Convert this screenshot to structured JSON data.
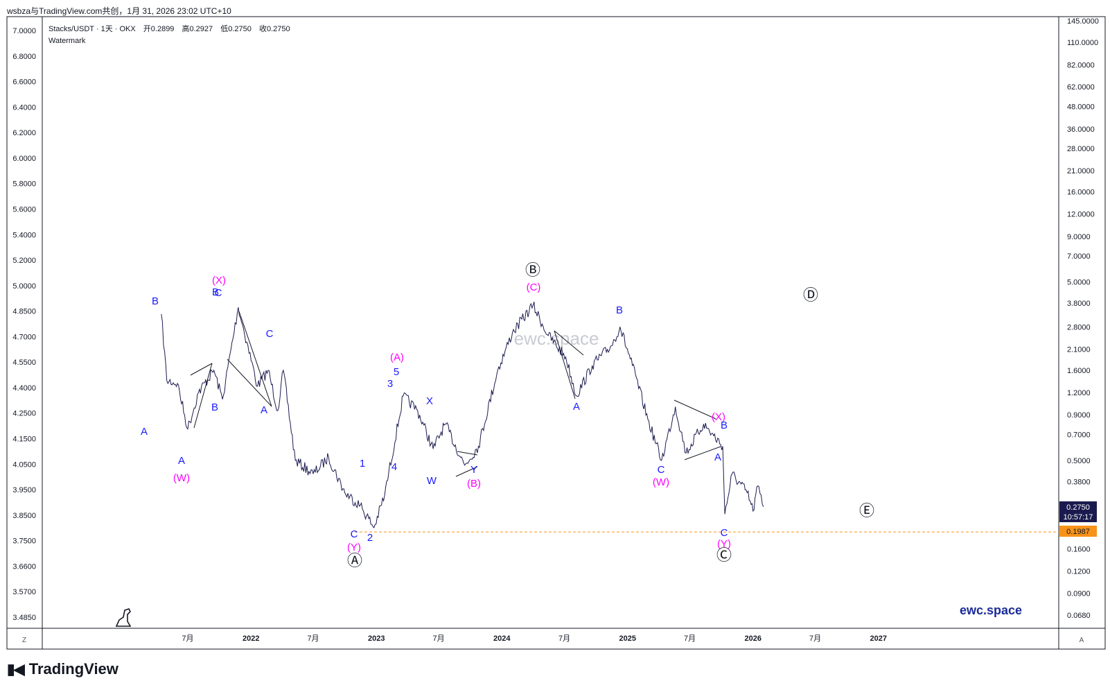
{
  "header": {
    "caption": "wsbza与TradingView.com共创，1月 31, 2026 23:02 UTC+10"
  },
  "legend": {
    "symbol": "Stacks/USDT · 1天 · OKX",
    "open_label": "开",
    "open": "0.2899",
    "high_label": "高",
    "high": "0.2927",
    "low_label": "低",
    "low": "0.2750",
    "close_label": "收",
    "close": "0.2750",
    "watermark_line": "Watermark"
  },
  "watermark": {
    "center_text": "ewc.space",
    "brand_text": "ewc.space"
  },
  "price_badges": {
    "last_price": "0.2750",
    "countdown": "10:57:17",
    "support": "0.1987"
  },
  "axis_buttons": {
    "left": "Z",
    "right": "A"
  },
  "footer": {
    "brand": "TradingView"
  },
  "colors": {
    "candle": "#1a1a4e",
    "blue_label": "#1a1aff",
    "magenta_label": "#ff00ff",
    "support_line": "#f7931a",
    "last_badge": "#1a1a4e",
    "support_badge": "#f7931a"
  },
  "chart_data": {
    "type": "line",
    "title": "Stacks/USDT · 1天 · OKX",
    "x_ticks": [
      "7月",
      "2022",
      "7月",
      "2023",
      "7月",
      "2024",
      "7月",
      "2025",
      "7月",
      "2026",
      "7月",
      "2027"
    ],
    "left_axis_ticks": [
      "7.0000",
      "6.8000",
      "6.6000",
      "6.4000",
      "6.2000",
      "6.0000",
      "5.8000",
      "5.6000",
      "5.4000",
      "5.2000",
      "5.0000",
      "4.8500",
      "4.7000",
      "4.5500",
      "4.4000",
      "4.2500",
      "4.1500",
      "4.0500",
      "3.9500",
      "3.8500",
      "3.7500",
      "3.6600",
      "3.5700",
      "3.4850"
    ],
    "right_axis_ticks": [
      "145.0000",
      "110.0000",
      "82.0000",
      "62.0000",
      "48.0000",
      "36.0000",
      "28.0000",
      "21.0000",
      "16.0000",
      "12.0000",
      "9.0000",
      "7.0000",
      "5.0000",
      "3.8000",
      "2.8000",
      "2.1000",
      "1.6000",
      "1.2000",
      "0.9000",
      "0.7000",
      "0.5000",
      "0.3800",
      "0.1600",
      "0.1200",
      "0.0900",
      "0.0680"
    ],
    "right_scale": "log",
    "grid": false,
    "series": [
      {
        "values": [
          [
            "2021-04-15",
            3.3
          ],
          [
            "2021-05-01",
            1.4
          ],
          [
            "2021-06-01",
            1.35
          ],
          [
            "2021-07-01",
            0.75
          ],
          [
            "2021-08-01",
            1.2
          ],
          [
            "2021-09-15",
            1.6
          ],
          [
            "2021-10-10",
            1.1
          ],
          [
            "2021-11-25",
            3.6
          ],
          [
            "2021-12-20",
            2.3
          ],
          [
            "2022-01-20",
            1.3
          ],
          [
            "2022-02-20",
            1.6
          ],
          [
            "2022-03-20",
            0.95
          ],
          [
            "2022-04-05",
            1.6
          ],
          [
            "2022-05-10",
            0.5
          ],
          [
            "2022-07-01",
            0.42
          ],
          [
            "2022-08-15",
            0.52
          ],
          [
            "2022-10-01",
            0.33
          ],
          [
            "2022-11-15",
            0.28
          ],
          [
            "2022-12-25",
            0.21
          ],
          [
            "2023-01-25",
            0.32
          ],
          [
            "2023-03-20",
            1.15
          ],
          [
            "2023-05-01",
            0.95
          ],
          [
            "2023-06-15",
            0.58
          ],
          [
            "2023-07-20",
            0.8
          ],
          [
            "2023-09-15",
            0.47
          ],
          [
            "2023-10-25",
            0.6
          ],
          [
            "2023-12-20",
            1.6
          ],
          [
            "2024-02-01",
            2.6
          ],
          [
            "2024-04-01",
            3.7
          ],
          [
            "2024-05-15",
            2.5
          ],
          [
            "2024-07-05",
            1.9
          ],
          [
            "2024-08-05",
            1.15
          ],
          [
            "2024-09-20",
            1.7
          ],
          [
            "2024-11-15",
            2.2
          ],
          [
            "2024-12-10",
            2.8
          ],
          [
            "2025-01-15",
            1.7
          ],
          [
            "2025-03-01",
            0.85
          ],
          [
            "2025-04-10",
            0.5
          ],
          [
            "2025-05-20",
            1.0
          ],
          [
            "2025-06-20",
            0.55
          ],
          [
            "2025-08-10",
            0.8
          ],
          [
            "2025-10-05",
            0.6
          ],
          [
            "2025-10-11",
            0.25
          ],
          [
            "2025-11-01",
            0.42
          ],
          [
            "2025-12-15",
            0.33
          ],
          [
            "2026-01-01",
            0.26
          ],
          [
            "2026-01-15",
            0.36
          ],
          [
            "2026-01-31",
            0.275
          ]
        ]
      }
    ],
    "horizontal_line": 0.1987,
    "annotations": [
      {
        "text": "A",
        "color": "blue"
      },
      {
        "text": "B",
        "color": "blue"
      },
      {
        "text": "C",
        "color": "blue"
      },
      {
        "text": "(W)",
        "color": "magenta"
      },
      {
        "text": "A",
        "color": "blue"
      },
      {
        "text": "B",
        "color": "blue"
      },
      {
        "text": "C",
        "color": "blue"
      },
      {
        "text": "(X)",
        "color": "magenta"
      },
      {
        "text": "A",
        "color": "blue"
      },
      {
        "text": "B",
        "color": "blue"
      },
      {
        "text": "C",
        "color": "blue"
      },
      {
        "text": "(Y)",
        "color": "magenta"
      },
      {
        "text": "Ⓐ",
        "color": "black"
      },
      {
        "text": "1",
        "color": "blue"
      },
      {
        "text": "2",
        "color": "blue"
      },
      {
        "text": "3",
        "color": "blue"
      },
      {
        "text": "4",
        "color": "blue"
      },
      {
        "text": "5",
        "color": "blue"
      },
      {
        "text": "(A)",
        "color": "magenta"
      },
      {
        "text": "W",
        "color": "blue"
      },
      {
        "text": "X",
        "color": "blue"
      },
      {
        "text": "Y",
        "color": "blue"
      },
      {
        "text": "(B)",
        "color": "magenta"
      },
      {
        "text": "(C)",
        "color": "magenta"
      },
      {
        "text": "Ⓑ",
        "color": "black"
      },
      {
        "text": "A",
        "color": "blue"
      },
      {
        "text": "B",
        "color": "blue"
      },
      {
        "text": "C",
        "color": "blue"
      },
      {
        "text": "(W)",
        "color": "magenta"
      },
      {
        "text": "(X)",
        "color": "magenta"
      },
      {
        "text": "A",
        "color": "blue"
      },
      {
        "text": "B",
        "color": "blue"
      },
      {
        "text": "C",
        "color": "blue"
      },
      {
        "text": "(Y)",
        "color": "magenta"
      },
      {
        "text": "Ⓒ",
        "color": "black"
      },
      {
        "text": "Ⓓ",
        "color": "black"
      },
      {
        "text": "Ⓔ",
        "color": "black"
      }
    ]
  }
}
